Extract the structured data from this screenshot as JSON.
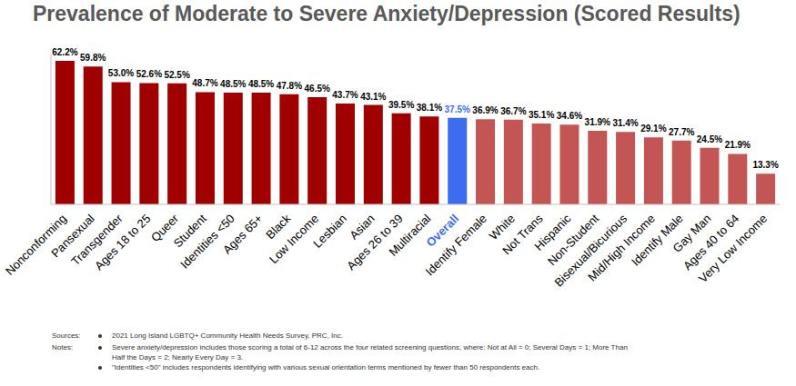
{
  "chart_data": {
    "type": "bar",
    "title": "Prevalence of Moderate to Severe Anxiety/Depression (Scored Results)",
    "categories": [
      "Nonconforming",
      "Pansexual",
      "Transgender",
      "Ages 18 to 25",
      "Queer",
      "Student",
      "Identities <50",
      "Ages 65+",
      "Black",
      "Low Income",
      "Lesbian",
      "Asian",
      "Ages 26 to 39",
      "Multiracial",
      "Overall",
      "Identify Female",
      "White",
      "Not Trans",
      "Hispanic",
      "Non-Student",
      "Bisexual/Bicurious",
      "Mid/High Income",
      "Identify Male",
      "Gay Man",
      "Ages 40 to 64",
      "Very Low Income"
    ],
    "values": [
      62.2,
      59.8,
      53.0,
      52.6,
      52.5,
      48.7,
      48.5,
      48.5,
      47.8,
      46.5,
      43.7,
      43.1,
      39.5,
      38.1,
      37.5,
      36.9,
      36.7,
      35.1,
      34.6,
      31.9,
      31.4,
      29.1,
      27.7,
      24.5,
      21.9,
      13.3
    ],
    "value_labels": [
      "62.2%",
      "59.8%",
      "53.0%",
      "52.6%",
      "52.5%",
      "48.7%",
      "48.5%",
      "48.5%",
      "47.8%",
      "46.5%",
      "43.7%",
      "43.1%",
      "39.5%",
      "38.1%",
      "37.5%",
      "36.9%",
      "36.7%",
      "35.1%",
      "34.6%",
      "31.9%",
      "31.4%",
      "29.1%",
      "27.7%",
      "24.5%",
      "21.9%",
      "13.3%"
    ],
    "colors": [
      "#a00000",
      "#a00000",
      "#a00000",
      "#a00000",
      "#a00000",
      "#a00000",
      "#a00000",
      "#a00000",
      "#a00000",
      "#a00000",
      "#a00000",
      "#a00000",
      "#a00000",
      "#a00000",
      "#3d6cf0",
      "#c45555",
      "#c45555",
      "#c45555",
      "#c45555",
      "#c45555",
      "#c45555",
      "#c45555",
      "#c45555",
      "#c45555",
      "#c45555",
      "#c45555"
    ],
    "ylim": [
      0,
      65
    ],
    "yticks": [],
    "grid": false,
    "data_labels": true,
    "tick_labels": "x",
    "annotations": [
      {
        "label": "Sources:",
        "items": [
          "2021 Long Island LGBTQ+ Community Health Needs Survey, PRC, Inc."
        ]
      },
      {
        "label": "Notes:",
        "items": [
          "Severe anxiety/depression includes those scoring a total of 6-12 across the four related screening questions, where: Not at  All = 0; Several Days = 1; More Than Half the Days = 2; Nearly Every Day = 3.",
          "\"Identities <50\" includes respondents identifying with various sexual orientation terms mentioned by fewer than 50 respondents each."
        ]
      }
    ]
  }
}
